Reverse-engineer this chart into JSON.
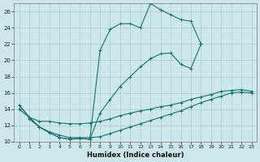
{
  "xlabel": "Humidex (Indice chaleur)",
  "bg_color": "#cce8ec",
  "line_color": "#1a7070",
  "grid_color": "#aacccc",
  "xlim": [
    -0.5,
    23.5
  ],
  "ylim": [
    10,
    27
  ],
  "xticks": [
    0,
    1,
    2,
    3,
    4,
    5,
    6,
    7,
    8,
    9,
    10,
    11,
    12,
    13,
    14,
    15,
    16,
    17,
    18,
    19,
    20,
    21,
    22,
    23
  ],
  "yticks": [
    10,
    12,
    14,
    16,
    18,
    20,
    22,
    24,
    26
  ],
  "series": [
    {
      "x": [
        0,
        1,
        2,
        3,
        4,
        5,
        6,
        7,
        8,
        9,
        10,
        11,
        12,
        13,
        14,
        15,
        16,
        17,
        18
      ],
      "y": [
        14.5,
        13.0,
        11.8,
        11.1,
        10.5,
        10.3,
        10.4,
        10.3,
        21.2,
        23.8,
        24.5,
        24.5,
        24.0,
        27.0,
        26.2,
        25.6,
        25.0,
        24.8,
        22.0
      ]
    },
    {
      "x": [
        0,
        1,
        2,
        3,
        4,
        5,
        6,
        7,
        8,
        9,
        10,
        11,
        12,
        13,
        14,
        15,
        16,
        17,
        18
      ],
      "y": [
        14.5,
        13.0,
        11.8,
        11.1,
        10.5,
        10.3,
        10.4,
        10.3,
        13.5,
        15.2,
        16.8,
        18.0,
        19.2,
        20.2,
        20.8,
        20.9,
        19.5,
        19.0,
        22.0
      ]
    },
    {
      "x": [
        0,
        1,
        2,
        3,
        4,
        5,
        6,
        7,
        8,
        9,
        10,
        11,
        12,
        13,
        14,
        15,
        16,
        17,
        18,
        19,
        20,
        21,
        22,
        23
      ],
      "y": [
        14.0,
        13.0,
        12.5,
        12.5,
        12.3,
        12.2,
        12.2,
        12.3,
        12.5,
        12.8,
        13.2,
        13.5,
        13.8,
        14.0,
        14.3,
        14.5,
        14.8,
        15.2,
        15.5,
        15.8,
        16.2,
        16.3,
        16.4,
        16.2
      ]
    },
    {
      "x": [
        1,
        2,
        3,
        4,
        5,
        6,
        7,
        8,
        9,
        10,
        11,
        12,
        13,
        14,
        15,
        16,
        17,
        18,
        19,
        20,
        21,
        22,
        23
      ],
      "y": [
        12.8,
        11.8,
        11.2,
        10.8,
        10.5,
        10.5,
        10.5,
        10.6,
        11.0,
        11.4,
        11.8,
        12.2,
        12.6,
        13.0,
        13.4,
        13.8,
        14.3,
        14.8,
        15.2,
        15.6,
        16.0,
        16.1,
        16.0
      ]
    }
  ]
}
